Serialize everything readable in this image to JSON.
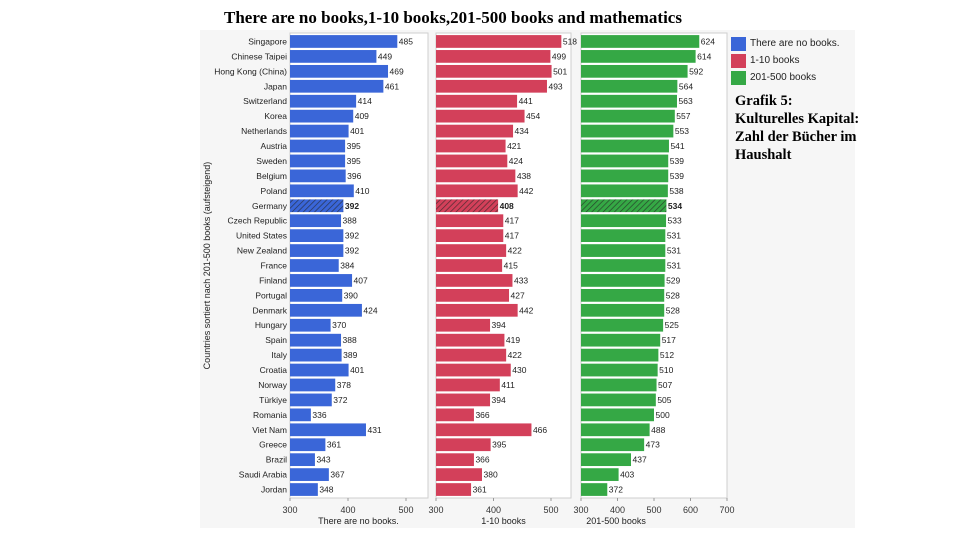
{
  "title": "There are no books,1-10 books,201-500 books and mathematics",
  "note_lines": [
    "Grafik 5:",
    "Kulturelles Kapital:",
    "Zahl der Bücher im",
    "Haushalt"
  ],
  "legend": [
    {
      "label": "There are no books.",
      "color": "#3a66d8"
    },
    {
      "label": "1-10 books",
      "color": "#d3405a"
    },
    {
      "label": "201-500 books",
      "color": "#35a845"
    }
  ],
  "chart_data": {
    "type": "bar",
    "orientation": "horizontal",
    "title": "There are no books,1-10 books,201-500 books and mathematics",
    "ylabel": "Countries sortiert nach 201-500 books (aufsteigend)",
    "highlight": "Germany",
    "categories": [
      "Singapore",
      "Chinese Taipei",
      "Hong Kong (China)",
      "Japan",
      "Switzerland",
      "Korea",
      "Netherlands",
      "Austria",
      "Sweden",
      "Belgium",
      "Poland",
      "Germany",
      "Czech Republic",
      "United States",
      "New Zealand",
      "France",
      "Finland",
      "Portugal",
      "Denmark",
      "Hungary",
      "Spain",
      "Italy",
      "Croatia",
      "Norway",
      "Türkiye",
      "Romania",
      "Viet Nam",
      "Greece",
      "Brazil",
      "Saudi Arabia",
      "Jordan"
    ],
    "series": [
      {
        "name": "There are no books.",
        "xlabel": "There are no books.",
        "color": "#3a66d8",
        "xlim": [
          300,
          536
        ],
        "ticks": [
          300,
          400,
          500
        ],
        "values": [
          485,
          449,
          469,
          461,
          414,
          409,
          401,
          395,
          395,
          396,
          410,
          392,
          388,
          392,
          392,
          384,
          407,
          390,
          424,
          370,
          388,
          389,
          401,
          378,
          372,
          336,
          431,
          361,
          343,
          367,
          348
        ]
      },
      {
        "name": "1-10 books",
        "xlabel": "1-10 books",
        "color": "#d3405a",
        "xlim": [
          300,
          536
        ],
        "ticks": [
          300,
          400,
          500
        ],
        "values": [
          518,
          499,
          501,
          493,
          441,
          454,
          434,
          421,
          424,
          438,
          442,
          408,
          417,
          417,
          422,
          415,
          433,
          427,
          442,
          394,
          419,
          422,
          430,
          411,
          394,
          366,
          466,
          395,
          366,
          380,
          361
        ]
      },
      {
        "name": "201-500 books",
        "xlabel": "201-500 books",
        "color": "#35a845",
        "xlim": [
          300,
          700
        ],
        "ticks": [
          300,
          400,
          500,
          600,
          700
        ],
        "values": [
          624,
          614,
          592,
          564,
          563,
          557,
          553,
          541,
          539,
          539,
          538,
          534,
          533,
          531,
          531,
          531,
          529,
          528,
          528,
          525,
          517,
          512,
          510,
          507,
          505,
          500,
          488,
          473,
          437,
          403,
          372
        ]
      }
    ],
    "grid": false,
    "legend_position": "right"
  }
}
